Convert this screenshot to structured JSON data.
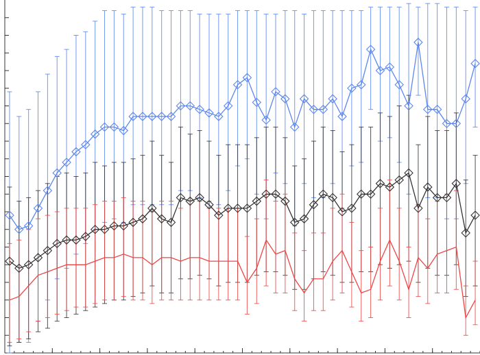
{
  "chart_data": {
    "type": "line",
    "title": "",
    "xlabel": "",
    "ylabel": "",
    "x_range": [
      0,
      1
    ],
    "y_range": [
      0,
      1
    ],
    "grid": false,
    "legend": "none",
    "x_ticks": [
      0,
      0.1,
      0.2,
      0.3,
      0.4,
      0.5,
      0.6,
      0.7,
      0.8,
      0.9
    ],
    "y_ticks": [
      0.05,
      0.1,
      0.15,
      0.2,
      0.25,
      0.3,
      0.35,
      0.4,
      0.45,
      0.5,
      0.55,
      0.6,
      0.65,
      0.7,
      0.75,
      0.8,
      0.85,
      0.9,
      0.95
    ],
    "series": [
      {
        "color": "#5b86f0",
        "marker": "diamond",
        "x": [
          0.01,
          0.03,
          0.05,
          0.07,
          0.09,
          0.11,
          0.13,
          0.15,
          0.17,
          0.19,
          0.21,
          0.23,
          0.25,
          0.27,
          0.29,
          0.31,
          0.33,
          0.35,
          0.37,
          0.39,
          0.41,
          0.43,
          0.45,
          0.47,
          0.49,
          0.51,
          0.53,
          0.55,
          0.57,
          0.59,
          0.61,
          0.63,
          0.65,
          0.67,
          0.69,
          0.71,
          0.73,
          0.75,
          0.77,
          0.79,
          0.81,
          0.83,
          0.85,
          0.87,
          0.89,
          0.91,
          0.93,
          0.95,
          0.97,
          0.99
        ],
        "y": [
          0.39,
          0.35,
          0.36,
          0.41,
          0.46,
          0.51,
          0.54,
          0.57,
          0.59,
          0.62,
          0.64,
          0.64,
          0.63,
          0.67,
          0.67,
          0.67,
          0.67,
          0.67,
          0.7,
          0.7,
          0.69,
          0.68,
          0.67,
          0.7,
          0.76,
          0.78,
          0.71,
          0.66,
          0.74,
          0.72,
          0.64,
          0.72,
          0.69,
          0.69,
          0.72,
          0.67,
          0.75,
          0.76,
          0.86,
          0.8,
          0.81,
          0.76,
          0.7,
          0.88,
          0.69,
          0.69,
          0.65,
          0.65,
          0.72,
          0.82
        ],
        "err_low": [
          0.39,
          0.32,
          0.33,
          0.32,
          0.31,
          0.3,
          0.3,
          0.29,
          0.28,
          0.27,
          0.27,
          0.26,
          0.26,
          0.25,
          0.25,
          0.25,
          0.25,
          0.25,
          0.24,
          0.24,
          0.25,
          0.25,
          0.25,
          0.24,
          0.23,
          0.23,
          0.26,
          0.28,
          0.23,
          0.24,
          0.28,
          0.24,
          0.25,
          0.25,
          0.24,
          0.26,
          0.22,
          0.22,
          0.17,
          0.2,
          0.2,
          0.22,
          0.25,
          0.15,
          0.25,
          0.25,
          0.27,
          0.27,
          0.24,
          0.18
        ],
        "err_high": [
          0.35,
          0.32,
          0.33,
          0.33,
          0.33,
          0.33,
          0.32,
          0.33,
          0.32,
          0.32,
          0.33,
          0.33,
          0.33,
          0.31,
          0.31,
          0.31,
          0.3,
          0.3,
          0.27,
          0.27,
          0.27,
          0.28,
          0.29,
          0.26,
          0.21,
          0.19,
          0.26,
          0.3,
          0.22,
          0.25,
          0.33,
          0.24,
          0.28,
          0.28,
          0.25,
          0.3,
          0.22,
          0.21,
          0.12,
          0.18,
          0.17,
          0.22,
          0.29,
          0.1,
          0.3,
          0.3,
          0.33,
          0.33,
          0.25,
          0.16
        ]
      },
      {
        "color": "#333333",
        "marker": "diamond",
        "x": [
          0.01,
          0.03,
          0.05,
          0.07,
          0.09,
          0.11,
          0.13,
          0.15,
          0.17,
          0.19,
          0.21,
          0.23,
          0.25,
          0.27,
          0.29,
          0.31,
          0.33,
          0.35,
          0.37,
          0.39,
          0.41,
          0.43,
          0.45,
          0.47,
          0.49,
          0.51,
          0.53,
          0.55,
          0.57,
          0.59,
          0.61,
          0.63,
          0.65,
          0.67,
          0.69,
          0.71,
          0.73,
          0.75,
          0.77,
          0.79,
          0.81,
          0.83,
          0.85,
          0.87,
          0.89,
          0.91,
          0.93,
          0.95,
          0.97,
          0.99
        ],
        "y": [
          0.26,
          0.24,
          0.25,
          0.27,
          0.29,
          0.31,
          0.32,
          0.32,
          0.33,
          0.35,
          0.35,
          0.36,
          0.36,
          0.37,
          0.38,
          0.41,
          0.38,
          0.37,
          0.44,
          0.43,
          0.44,
          0.42,
          0.39,
          0.41,
          0.41,
          0.41,
          0.43,
          0.45,
          0.45,
          0.43,
          0.37,
          0.38,
          0.42,
          0.45,
          0.44,
          0.4,
          0.41,
          0.45,
          0.45,
          0.48,
          0.47,
          0.49,
          0.51,
          0.41,
          0.47,
          0.44,
          0.44,
          0.48,
          0.34,
          0.39
        ],
        "err_low": [
          0.24,
          0.21,
          0.21,
          0.21,
          0.22,
          0.22,
          0.22,
          0.21,
          0.21,
          0.22,
          0.21,
          0.21,
          0.21,
          0.21,
          0.21,
          0.22,
          0.21,
          0.2,
          0.23,
          0.22,
          0.22,
          0.21,
          0.2,
          0.21,
          0.21,
          0.21,
          0.21,
          0.22,
          0.22,
          0.21,
          0.19,
          0.2,
          0.21,
          0.22,
          0.22,
          0.2,
          0.21,
          0.22,
          0.22,
          0.23,
          0.23,
          0.24,
          0.25,
          0.21,
          0.23,
          0.22,
          0.22,
          0.23,
          0.18,
          0.2
        ],
        "err_high": [
          0.21,
          0.19,
          0.19,
          0.19,
          0.19,
          0.19,
          0.19,
          0.18,
          0.18,
          0.19,
          0.18,
          0.18,
          0.18,
          0.18,
          0.18,
          0.19,
          0.18,
          0.17,
          0.2,
          0.19,
          0.19,
          0.18,
          0.17,
          0.18,
          0.18,
          0.18,
          0.18,
          0.19,
          0.19,
          0.18,
          0.16,
          0.17,
          0.18,
          0.19,
          0.19,
          0.17,
          0.18,
          0.19,
          0.19,
          0.2,
          0.2,
          0.21,
          0.22,
          0.18,
          0.2,
          0.19,
          0.19,
          0.2,
          0.15,
          0.17
        ]
      },
      {
        "color": "#ee4444",
        "marker": "none",
        "x": [
          0.01,
          0.03,
          0.05,
          0.07,
          0.09,
          0.11,
          0.13,
          0.15,
          0.17,
          0.19,
          0.21,
          0.23,
          0.25,
          0.27,
          0.29,
          0.31,
          0.33,
          0.35,
          0.37,
          0.39,
          0.41,
          0.43,
          0.45,
          0.47,
          0.49,
          0.51,
          0.53,
          0.55,
          0.57,
          0.59,
          0.61,
          0.63,
          0.65,
          0.67,
          0.69,
          0.71,
          0.73,
          0.75,
          0.77,
          0.79,
          0.81,
          0.83,
          0.85,
          0.87,
          0.89,
          0.91,
          0.93,
          0.95,
          0.97,
          0.99
        ],
        "y": [
          0.15,
          0.16,
          0.19,
          0.22,
          0.23,
          0.24,
          0.25,
          0.25,
          0.25,
          0.26,
          0.27,
          0.27,
          0.28,
          0.27,
          0.27,
          0.25,
          0.27,
          0.27,
          0.26,
          0.27,
          0.27,
          0.26,
          0.26,
          0.26,
          0.26,
          0.2,
          0.24,
          0.32,
          0.28,
          0.29,
          0.21,
          0.17,
          0.21,
          0.21,
          0.26,
          0.29,
          0.23,
          0.17,
          0.18,
          0.26,
          0.32,
          0.26,
          0.18,
          0.27,
          0.24,
          0.28,
          0.29,
          0.3,
          0.1,
          0.15
        ],
        "err_low": [
          0.12,
          0.12,
          0.13,
          0.13,
          0.13,
          0.13,
          0.13,
          0.12,
          0.12,
          0.12,
          0.12,
          0.12,
          0.12,
          0.12,
          0.12,
          0.11,
          0.12,
          0.12,
          0.11,
          0.12,
          0.12,
          0.11,
          0.11,
          0.11,
          0.11,
          0.09,
          0.1,
          0.13,
          0.11,
          0.12,
          0.09,
          0.08,
          0.09,
          0.09,
          0.11,
          0.12,
          0.1,
          0.08,
          0.08,
          0.11,
          0.13,
          0.11,
          0.08,
          0.11,
          0.1,
          0.11,
          0.12,
          0.12,
          0.05,
          0.07
        ],
        "err_high": [
          0.16,
          0.16,
          0.16,
          0.16,
          0.16,
          0.16,
          0.16,
          0.16,
          0.16,
          0.16,
          0.16,
          0.16,
          0.16,
          0.16,
          0.16,
          0.15,
          0.16,
          0.16,
          0.15,
          0.16,
          0.16,
          0.15,
          0.15,
          0.15,
          0.15,
          0.13,
          0.14,
          0.17,
          0.15,
          0.16,
          0.13,
          0.12,
          0.13,
          0.13,
          0.15,
          0.16,
          0.14,
          0.12,
          0.12,
          0.15,
          0.17,
          0.15,
          0.12,
          0.15,
          0.14,
          0.15,
          0.16,
          0.16,
          0.09,
          0.11
        ]
      }
    ]
  }
}
